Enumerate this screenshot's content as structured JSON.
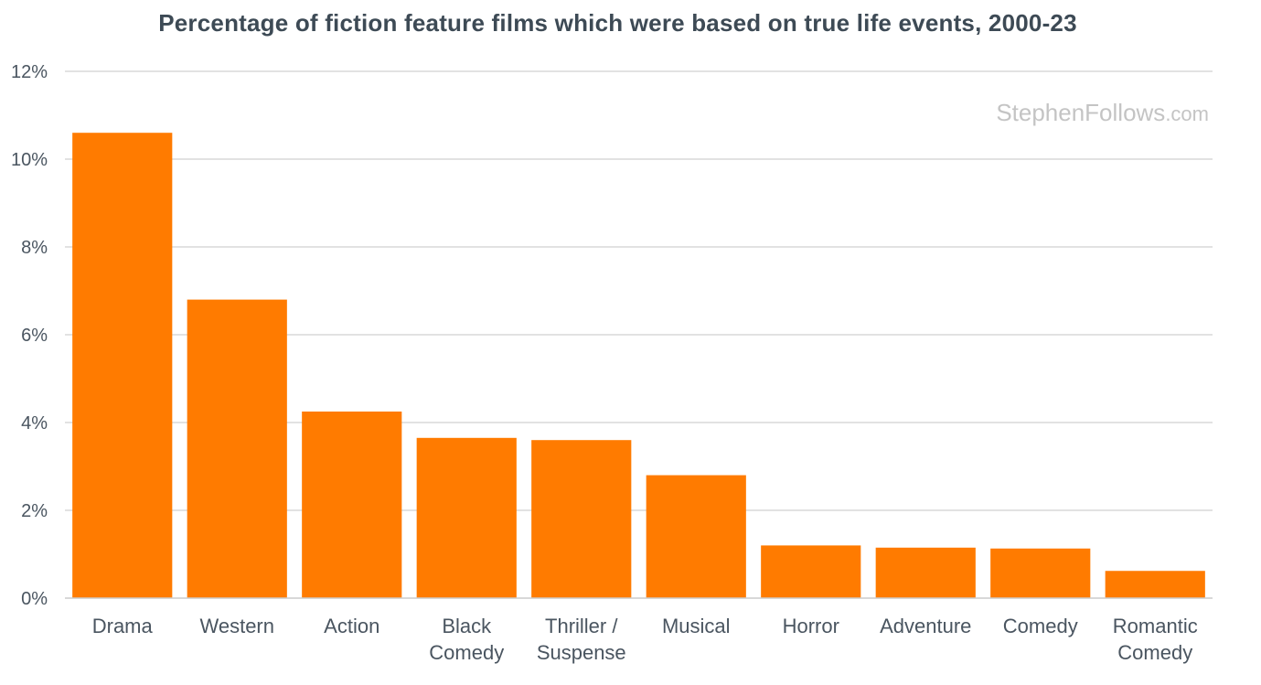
{
  "chart_data": {
    "type": "bar",
    "title": "Percentage of fiction feature films which were based on true life events, 2000-23",
    "xlabel": "",
    "ylabel": "",
    "categories": [
      [
        "Drama"
      ],
      [
        "Western"
      ],
      [
        "Action"
      ],
      [
        "Black",
        "Comedy"
      ],
      [
        "Thriller /",
        "Suspense"
      ],
      [
        "Musical"
      ],
      [
        "Horror"
      ],
      [
        "Adventure"
      ],
      [
        "Comedy"
      ],
      [
        "Romantic",
        "Comedy"
      ]
    ],
    "values": [
      10.6,
      6.8,
      4.25,
      3.65,
      3.6,
      2.8,
      1.2,
      1.15,
      1.13,
      0.62
    ],
    "ylim": [
      0,
      12
    ],
    "yticks": [
      0,
      2,
      4,
      6,
      8,
      10,
      12
    ],
    "ytick_labels": [
      "0%",
      "2%",
      "4%",
      "6%",
      "8%",
      "10%",
      "12%"
    ],
    "grid": true,
    "legend": "none",
    "bar_color": "#ff7b00",
    "grid_color": "#d9d9d9"
  },
  "watermark": {
    "main": "StephenFollows",
    "suffix": ".com"
  }
}
